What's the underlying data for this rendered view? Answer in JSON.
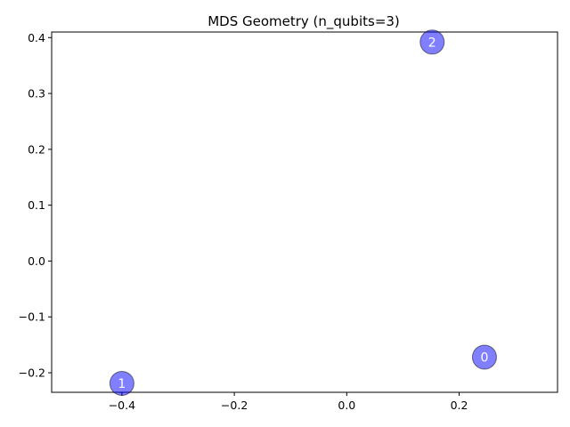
{
  "chart_data": {
    "type": "scatter",
    "title": "MDS Geometry (n_qubits=3)",
    "xlabel": "",
    "ylabel": "",
    "xlim": [
      -0.525,
      0.375
    ],
    "ylim": [
      -0.235,
      0.41
    ],
    "xticks": [
      -0.4,
      -0.2,
      0.0,
      0.2
    ],
    "xtick_labels": [
      "−0.4",
      "−0.2",
      "0.0",
      "0.2"
    ],
    "yticks": [
      -0.2,
      -0.1,
      0.0,
      0.1,
      0.2,
      0.3,
      0.4
    ],
    "ytick_labels": [
      "−0.2",
      "−0.1",
      "0.0",
      "0.1",
      "0.2",
      "0.3",
      "0.4"
    ],
    "grid": false,
    "marker_color": "#0000ff",
    "marker_alpha": 0.5,
    "points": [
      {
        "label": "0",
        "x": 0.245,
        "y": -0.172
      },
      {
        "label": "1",
        "x": -0.4,
        "y": -0.219
      },
      {
        "label": "2",
        "x": 0.152,
        "y": 0.392
      }
    ]
  }
}
